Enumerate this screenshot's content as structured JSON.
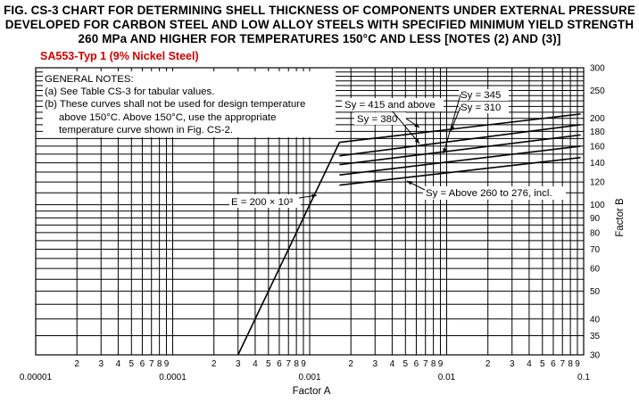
{
  "figure": {
    "title_lines": [
      "FIG. CS-3   CHART FOR DETERMINING SHELL THICKNESS OF COMPONENTS UNDER EXTERNAL PRESSURE",
      "DEVELOPED FOR CARBON STEEL AND LOW ALLOY STEELS WITH SPECIFIED MINIMUM YIELD STRENGTH",
      "260 MPa AND HIGHER FOR TEMPERATURES 150°C AND LESS [NOTES (2) AND (3)]"
    ],
    "subtitle": "SA553-Typ 1 (9% Nickel Steel)",
    "subtitle_color": "#d00000"
  },
  "chart_data": {
    "type": "line",
    "xlabel": "Factor A",
    "ylabel": "Factor B",
    "x_scale": "log",
    "y_scale": "log",
    "xlim": [
      1e-05,
      0.1
    ],
    "ylim": [
      30,
      300
    ],
    "grid": true,
    "x_major_ticks": [
      {
        "value": 1e-05,
        "label": "0.00001"
      },
      {
        "value": 0.0001,
        "label": "0.0001"
      },
      {
        "value": 0.001,
        "label": "0.001"
      },
      {
        "value": 0.01,
        "label": "0.01"
      },
      {
        "value": 0.1,
        "label": "0.1"
      }
    ],
    "x_minor_ticks": [
      {
        "value": 2e-05,
        "label": "2"
      },
      {
        "value": 3e-05,
        "label": "3"
      },
      {
        "value": 4e-05,
        "label": "4"
      },
      {
        "value": 5e-05,
        "label": "5"
      },
      {
        "value": 6e-05,
        "label": "6"
      },
      {
        "value": 7e-05,
        "label": "7"
      },
      {
        "value": 8e-05,
        "label": "8"
      },
      {
        "value": 9e-05,
        "label": "9"
      },
      {
        "value": 0.0002,
        "label": "2"
      },
      {
        "value": 0.0003,
        "label": "3"
      },
      {
        "value": 0.0004,
        "label": "4"
      },
      {
        "value": 0.0005,
        "label": "5"
      },
      {
        "value": 0.0006,
        "label": "6"
      },
      {
        "value": 0.0007,
        "label": "7"
      },
      {
        "value": 0.0008,
        "label": "8"
      },
      {
        "value": 0.0009,
        "label": "9"
      },
      {
        "value": 0.002,
        "label": "2"
      },
      {
        "value": 0.003,
        "label": "3"
      },
      {
        "value": 0.004,
        "label": "4"
      },
      {
        "value": 0.005,
        "label": "5"
      },
      {
        "value": 0.006,
        "label": "6"
      },
      {
        "value": 0.007,
        "label": "7"
      },
      {
        "value": 0.008,
        "label": "8"
      },
      {
        "value": 0.009,
        "label": "9"
      },
      {
        "value": 0.02,
        "label": "2"
      },
      {
        "value": 0.03,
        "label": "3"
      },
      {
        "value": 0.04,
        "label": "4"
      },
      {
        "value": 0.05,
        "label": "5"
      },
      {
        "value": 0.06,
        "label": "6"
      },
      {
        "value": 0.07,
        "label": "7"
      },
      {
        "value": 0.08,
        "label": "8"
      },
      {
        "value": 0.09,
        "label": "9"
      }
    ],
    "y_ticks": [
      {
        "value": 300,
        "label": "300"
      },
      {
        "value": 250,
        "label": "250"
      },
      {
        "value": 200,
        "label": "200"
      },
      {
        "value": 180,
        "label": "180"
      },
      {
        "value": 160,
        "label": "160"
      },
      {
        "value": 140,
        "label": "140"
      },
      {
        "value": 120,
        "label": "120"
      },
      {
        "value": 100,
        "label": "100"
      },
      {
        "value": 90,
        "label": "90"
      },
      {
        "value": 80,
        "label": "80"
      },
      {
        "value": 70,
        "label": "70"
      },
      {
        "value": 60,
        "label": "60"
      },
      {
        "value": 50,
        "label": "50"
      },
      {
        "value": 40,
        "label": "40"
      },
      {
        "value": 35,
        "label": "35"
      },
      {
        "value": 30,
        "label": "30"
      }
    ],
    "elastic_line": {
      "label": "E = 200 × 10³",
      "points": [
        [
          0.0003,
          30
        ],
        [
          0.00165,
          165
        ]
      ]
    },
    "series": [
      {
        "name": "Sy = 415 and above",
        "points": [
          [
            0.00165,
            165
          ],
          [
            0.095,
            207
          ]
        ]
      },
      {
        "name": "Sy = 380",
        "points": [
          [
            0.00165,
            148
          ],
          [
            0.095,
            190
          ]
        ]
      },
      {
        "name": "Sy = 345",
        "points": [
          [
            0.00165,
            138
          ],
          [
            0.095,
            175
          ]
        ]
      },
      {
        "name": "Sy = 310",
        "points": [
          [
            0.00165,
            127
          ],
          [
            0.095,
            160
          ]
        ]
      },
      {
        "name": "Sy = Above 260 to 276, incl.",
        "points": [
          [
            0.00165,
            117
          ],
          [
            0.095,
            146
          ]
        ]
      }
    ],
    "annotations": {
      "notes_header": "GENERAL NOTES:",
      "note_a": "(a) See Table CS-3 for tabular values.",
      "note_b_line1": "(b) These curves shall not be used for design temperature",
      "note_b_line2": "above 150°C. Above 150°C, use the appropriate",
      "note_b_line3": "temperature curve shown in Fig. CS-2."
    }
  }
}
